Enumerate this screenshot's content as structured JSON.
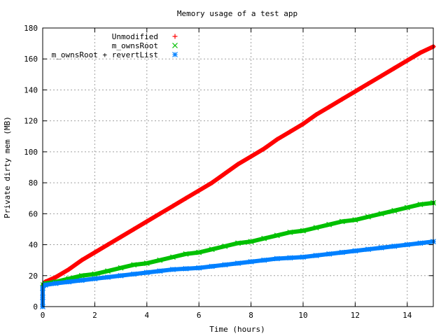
{
  "chart_data": {
    "type": "scatter",
    "title": "Memory usage of a test app",
    "xlabel": "Time (hours)",
    "ylabel": "Private dirty mem (MB)",
    "xlim": [
      0,
      15
    ],
    "ylim": [
      0,
      180
    ],
    "xticks": [
      0,
      2,
      4,
      6,
      8,
      10,
      12,
      14
    ],
    "yticks": [
      0,
      20,
      40,
      60,
      80,
      100,
      120,
      140,
      160,
      180
    ],
    "grid": true,
    "legend_position": "top-left",
    "series": [
      {
        "name": "Unmodified",
        "marker": "+",
        "color": "#ff0000",
        "x": [
          0,
          0.02,
          0.1,
          0.5,
          1,
          1.5,
          2,
          2.5,
          3,
          3.5,
          4,
          4.5,
          5,
          5.5,
          6,
          6.5,
          7,
          7.5,
          8,
          8.5,
          9,
          9.5,
          10,
          10.5,
          11,
          11.5,
          12,
          12.5,
          13,
          13.5,
          14,
          14.5,
          15
        ],
        "y": [
          12,
          14,
          16,
          19,
          24,
          30,
          35,
          40,
          45,
          50,
          55,
          60,
          65,
          70,
          75,
          80,
          86,
          92,
          97,
          102,
          108,
          113,
          118,
          124,
          129,
          134,
          139,
          144,
          149,
          154,
          159,
          164,
          168
        ]
      },
      {
        "name": "m_ownsRoot",
        "marker": "x",
        "color": "#00c000",
        "x": [
          0,
          0.02,
          0.1,
          0.5,
          1,
          1.5,
          2,
          2.5,
          3,
          3.5,
          4,
          4.5,
          5,
          5.5,
          6,
          6.5,
          7,
          7.5,
          8,
          8.5,
          9,
          9.5,
          10,
          10.5,
          11,
          11.5,
          12,
          12.5,
          13,
          13.5,
          14,
          14.5,
          15
        ],
        "y": [
          12,
          14,
          15,
          16,
          18,
          20,
          21,
          23,
          25,
          27,
          28,
          30,
          32,
          34,
          35,
          37,
          39,
          41,
          42,
          44,
          46,
          48,
          49,
          51,
          53,
          55,
          56,
          58,
          60,
          62,
          64,
          66,
          67
        ]
      },
      {
        "name": "m_ownsRoot + revertList",
        "marker": "*",
        "color": "#0080ff",
        "x": [
          0,
          0,
          0,
          0.1,
          0.5,
          1,
          1.5,
          2,
          2.5,
          3,
          3.5,
          4,
          4.5,
          5,
          5.5,
          6,
          6.5,
          7,
          7.5,
          8,
          8.5,
          9,
          9.5,
          10,
          10.5,
          11,
          11.5,
          12,
          12.5,
          13,
          13.5,
          14,
          14.5,
          15
        ],
        "y": [
          0,
          6,
          12,
          14,
          15,
          16,
          17,
          18,
          19,
          20,
          21,
          22,
          23,
          24,
          24.5,
          25,
          26,
          27,
          28,
          29,
          30,
          31,
          31.5,
          32,
          33,
          34,
          35,
          36,
          37,
          38,
          39,
          40,
          41,
          42
        ]
      }
    ]
  }
}
